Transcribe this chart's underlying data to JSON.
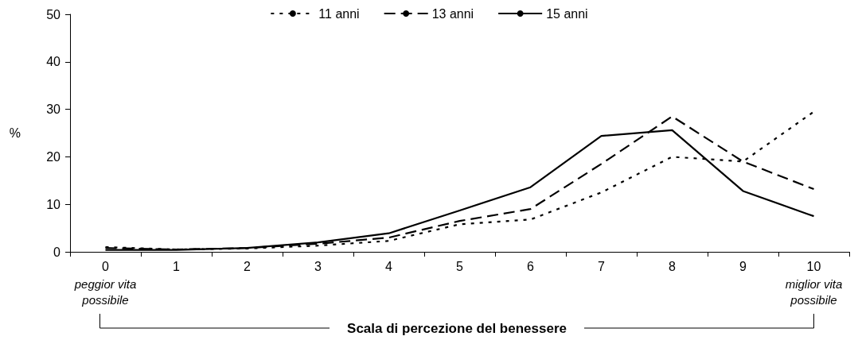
{
  "chart_data": {
    "type": "line",
    "ylabel": "%",
    "xlabel": "Scala di percezione del benessere",
    "categories": [
      "0",
      "1",
      "2",
      "3",
      "4",
      "5",
      "6",
      "7",
      "8",
      "9",
      "10"
    ],
    "series": [
      {
        "name": "11 anni",
        "color": "#000000",
        "line_style": "dotted",
        "values": [
          1.0,
          0.5,
          0.7,
          1.3,
          2.3,
          5.8,
          6.8,
          12.5,
          20,
          19,
          29.5
        ]
      },
      {
        "name": "13 anni",
        "color": "#000000",
        "line_style": "dashed",
        "values": [
          0.8,
          0.5,
          0.8,
          1.7,
          3.0,
          6.5,
          9.0,
          18.5,
          28.5,
          19,
          13.2
        ]
      },
      {
        "name": "15 anni",
        "color": "#000000",
        "line_style": "solid",
        "values": [
          0.4,
          0.4,
          0.8,
          2.0,
          3.9,
          8.7,
          13.6,
          24.4,
          25.6,
          12.8,
          7.5
        ]
      }
    ],
    "ylim": [
      0,
      50
    ],
    "yticks": [
      0,
      10,
      20,
      30,
      40,
      50
    ],
    "grid": false,
    "legend": "top",
    "marker": "none",
    "annotations": [
      "peggior vita possibile",
      "miglior vita possibile"
    ]
  }
}
